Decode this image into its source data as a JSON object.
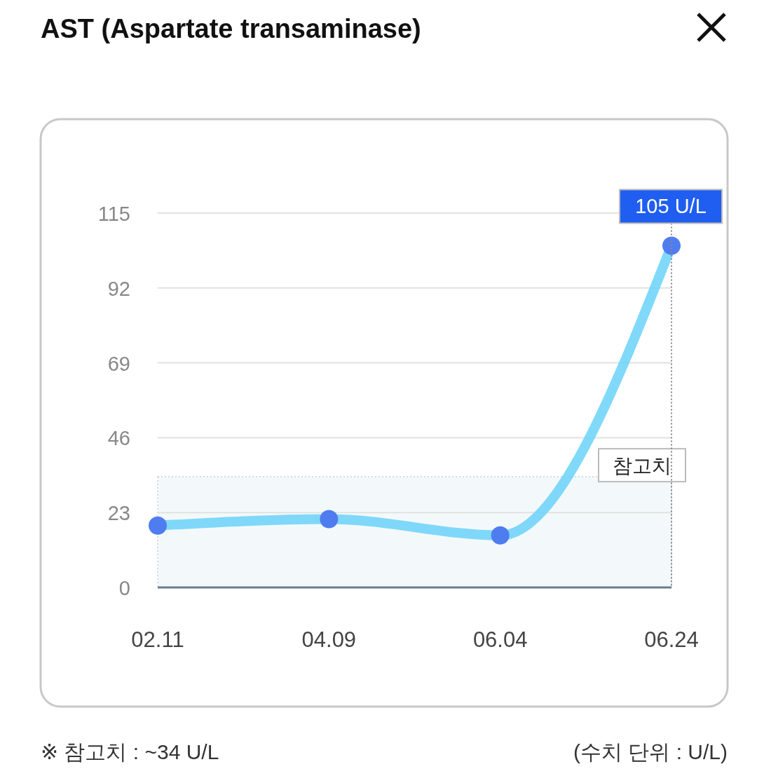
{
  "chart_data": {
    "type": "line",
    "title": "AST (Aspartate transaminase)",
    "categories": [
      "02.11",
      "04.09",
      "06.04",
      "06.24"
    ],
    "series": [
      {
        "color": "#6ad2f8",
        "values": [
          19,
          21,
          16,
          105
        ],
        "value_labels": [
          null,
          null,
          null,
          "105 U/L"
        ]
      }
    ],
    "ylim": [
      0,
      115
    ],
    "yticks": [
      0,
      23,
      46,
      69,
      92,
      115
    ],
    "grid": "y",
    "marker": "circle",
    "line_style": "solid",
    "bands": [
      {
        "axis": "y",
        "from": 0,
        "to": 34,
        "label": "참고치",
        "color": "#f3f9fa"
      }
    ],
    "annotations": [
      "※ 참고치 : ~34 U/L",
      "(수치 단위 : U/L)"
    ]
  }
}
